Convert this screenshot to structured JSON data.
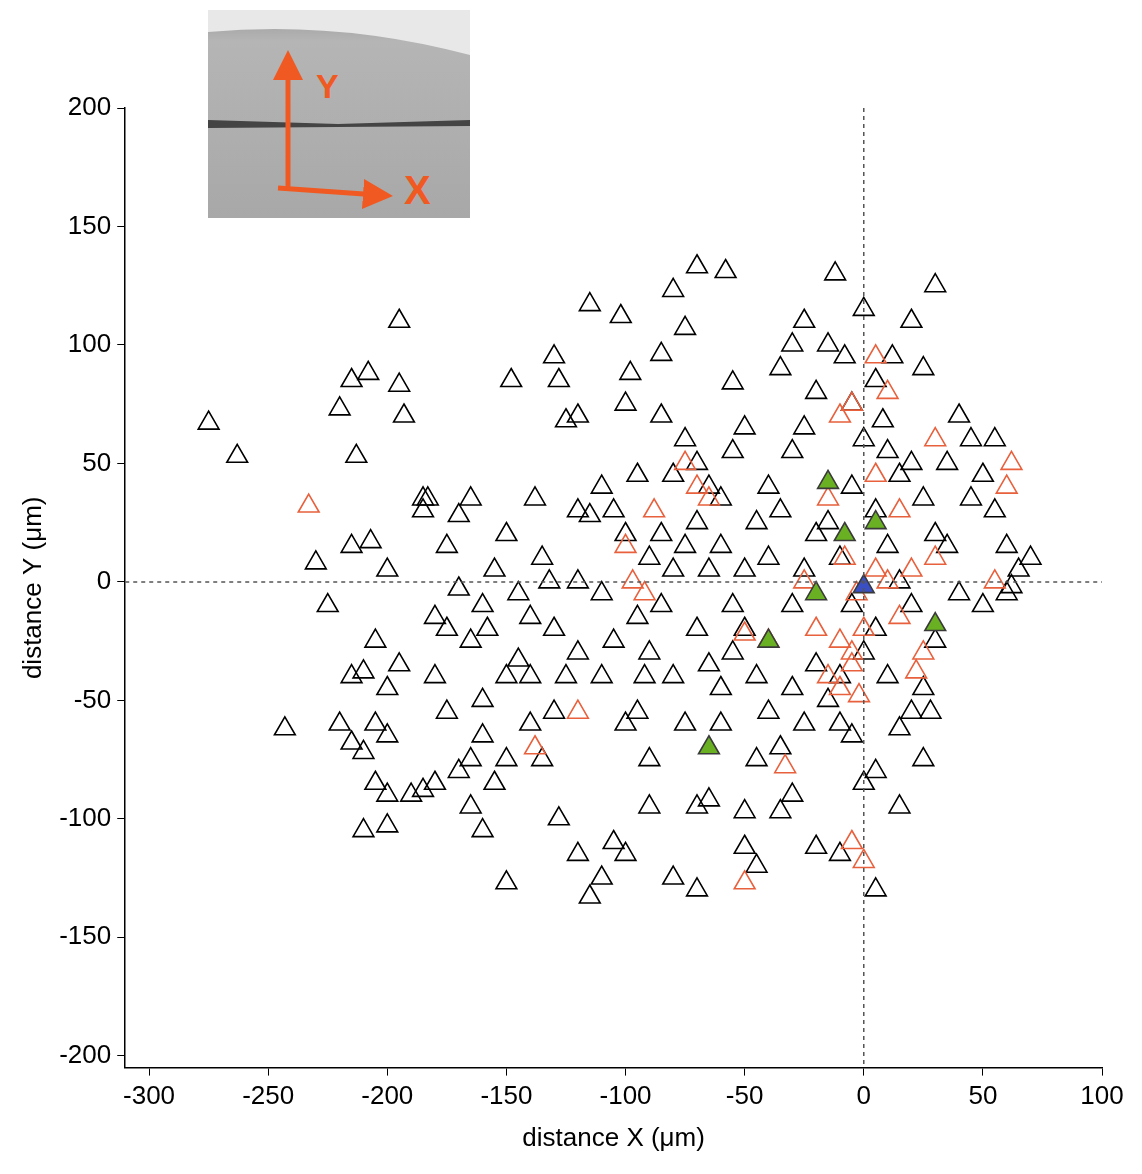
{
  "chart_data": {
    "type": "scatter",
    "x_label": "distance X (μm)",
    "y_label": "distance Y (μm)",
    "xlim": [
      -310,
      100
    ],
    "xticks": [
      -300,
      -250,
      -200,
      -150,
      -100,
      -50,
      0,
      50,
      100
    ],
    "ylim": [
      -205,
      200
    ],
    "yticks": [
      -200,
      -150,
      -100,
      -50,
      0,
      50,
      100,
      150,
      200
    ],
    "grid": false,
    "x_reference": 0,
    "y_reference": 0,
    "inset": {
      "x_arrow": "X",
      "y_arrow": "Y"
    },
    "series": [
      {
        "color": "#000000",
        "marker": "triangle-open",
        "x": [
          -275,
          -263,
          -243,
          -230,
          -225,
          -220,
          -215,
          -213,
          -215,
          -207,
          -208,
          -195,
          -195,
          -193,
          -200,
          -205,
          -210,
          -215,
          -220,
          -215,
          -210,
          -205,
          -200,
          -200,
          -195,
          -205,
          -200,
          -210,
          -200,
          -190,
          -185,
          -180,
          -183,
          -185,
          -180,
          -175,
          -170,
          -170,
          -165,
          -160,
          -160,
          -165,
          -170,
          -165,
          -160,
          -155,
          -150,
          -150,
          -148,
          -145,
          -140,
          -138,
          -135,
          -132,
          -130,
          -128,
          -125,
          -120,
          -120,
          -115,
          -115,
          -110,
          -105,
          -102,
          -100,
          -100,
          -98,
          -92,
          -85,
          -80,
          -75,
          -70,
          -58,
          -55,
          -128,
          -120,
          -115,
          -110,
          -105,
          -100,
          -90,
          -80,
          -70,
          -70,
          -65,
          -50,
          -50,
          -45,
          -35,
          -30,
          -20,
          -10,
          5,
          5,
          0,
          -150,
          -155,
          -158,
          -145,
          -140,
          -130,
          -125,
          -120,
          -110,
          -100,
          -95,
          -90,
          -85,
          -80,
          -75,
          -70,
          -65,
          -60,
          -55,
          -50,
          -45,
          -40,
          -35,
          -30,
          -25,
          -20,
          -15,
          -10,
          -85,
          -80,
          -75,
          -70,
          -65,
          -60,
          -55,
          -50,
          -45,
          -40,
          -35,
          -30,
          -25,
          -20,
          -15,
          -12,
          -8,
          -5,
          0,
          5,
          8,
          10,
          15,
          20,
          25,
          30,
          35,
          40,
          45,
          50,
          55,
          60,
          65,
          70,
          62,
          50,
          40,
          30,
          25,
          20,
          15,
          10,
          5,
          0,
          -5,
          -10,
          -15,
          -20,
          -25,
          -30,
          -40,
          -50,
          -60,
          -70,
          -90,
          -95,
          -105,
          -110,
          -140,
          -130,
          25,
          20,
          30,
          12,
          -30,
          -35,
          -25,
          15,
          25,
          28,
          -5,
          -10,
          35,
          45,
          55,
          60,
          -185,
          -160,
          -175,
          -5,
          0,
          5,
          10,
          15,
          20,
          -120,
          -95,
          -85,
          -65,
          -60,
          -55,
          -75,
          -80,
          -45,
          -135,
          -150,
          -165,
          -175,
          -180,
          -90
        ],
        "y": [
          67,
          53,
          -62,
          8,
          -10,
          73,
          85,
          53,
          15,
          17,
          88,
          110,
          83,
          70,
          5,
          -25,
          -38,
          -40,
          -60,
          -68,
          -72,
          -60,
          -65,
          -45,
          -35,
          -85,
          -90,
          -105,
          -103,
          -90,
          -88,
          -85,
          35,
          30,
          -15,
          15,
          28,
          -3,
          35,
          -10,
          -65,
          -75,
          -80,
          -95,
          -105,
          -85,
          -75,
          -127,
          85,
          -33,
          -40,
          35,
          10,
          0,
          95,
          85,
          68,
          70,
          30,
          117,
          28,
          40,
          30,
          112,
          20,
          75,
          88,
          -40,
          96,
          123,
          107,
          133,
          131,
          84,
          -100,
          -115,
          -133,
          -125,
          -110,
          -115,
          -95,
          -125,
          -130,
          -95,
          -92,
          -97,
          -112,
          -120,
          -97,
          -90,
          -112,
          -115,
          -130,
          -80,
          -85,
          20,
          5,
          -20,
          -5,
          -15,
          -20,
          -40,
          -30,
          -40,
          -60,
          -55,
          -30,
          -10,
          5,
          15,
          -20,
          -35,
          -45,
          -30,
          -20,
          -40,
          -55,
          -70,
          -45,
          -60,
          -35,
          -50,
          -60,
          70,
          45,
          60,
          50,
          40,
          35,
          55,
          65,
          25,
          40,
          30,
          55,
          65,
          80,
          100,
          130,
          95,
          75,
          115,
          85,
          68,
          55,
          45,
          50,
          35,
          20,
          15,
          70,
          60,
          45,
          30,
          15,
          5,
          10,
          -2,
          -10,
          -5,
          -25,
          -45,
          -55,
          -62,
          -40,
          -20,
          -30,
          -10,
          10,
          25,
          20,
          5,
          -10,
          10,
          5,
          15,
          25,
          10,
          -15,
          -25,
          -5,
          -60,
          -55,
          90,
          110,
          125,
          95,
          100,
          90,
          110,
          -95,
          -75,
          -55,
          -65,
          -40,
          50,
          35,
          60,
          -5,
          35,
          -50,
          -55,
          40,
          60,
          30,
          15,
          0,
          -10,
          0,
          45,
          20,
          5,
          -60,
          -10,
          -60,
          -40,
          -75,
          -75,
          -40,
          -25,
          -20,
          -40,
          -75
        ]
      },
      {
        "color": "#e8603c",
        "marker": "triangle-open",
        "x": [
          -233,
          -138,
          -120,
          -100,
          -97,
          -92,
          -88,
          -75,
          -70,
          -65,
          -50,
          -33,
          -50,
          -15,
          -10,
          -10,
          -5,
          -5,
          0,
          -3,
          5,
          10,
          15,
          20,
          25,
          22,
          30,
          -10,
          -5,
          5,
          10,
          5,
          -15,
          -8,
          -20,
          -5,
          0,
          30,
          55,
          60,
          62,
          -25,
          -40,
          -2,
          15
        ],
        "y": [
          32,
          -70,
          -55,
          15,
          0,
          -5,
          30,
          50,
          40,
          35,
          -22,
          -78,
          -127,
          -40,
          -45,
          -25,
          -30,
          -35,
          -20,
          -5,
          5,
          0,
          -15,
          5,
          -30,
          -38,
          10,
          70,
          75,
          95,
          80,
          45,
          35,
          10,
          -20,
          -110,
          -118,
          60,
          0,
          40,
          50,
          0,
          -25,
          -48,
          30
        ]
      },
      {
        "color": "#6ab023",
        "marker": "triangle",
        "x": [
          -15,
          5,
          -8,
          -20,
          30,
          -40,
          -65
        ],
        "y": [
          42,
          25,
          20,
          -5,
          -18,
          -25,
          -70
        ]
      },
      {
        "color": "#3a4fc4",
        "marker": "triangle",
        "x": [
          0
        ],
        "y": [
          -2
        ]
      }
    ]
  }
}
